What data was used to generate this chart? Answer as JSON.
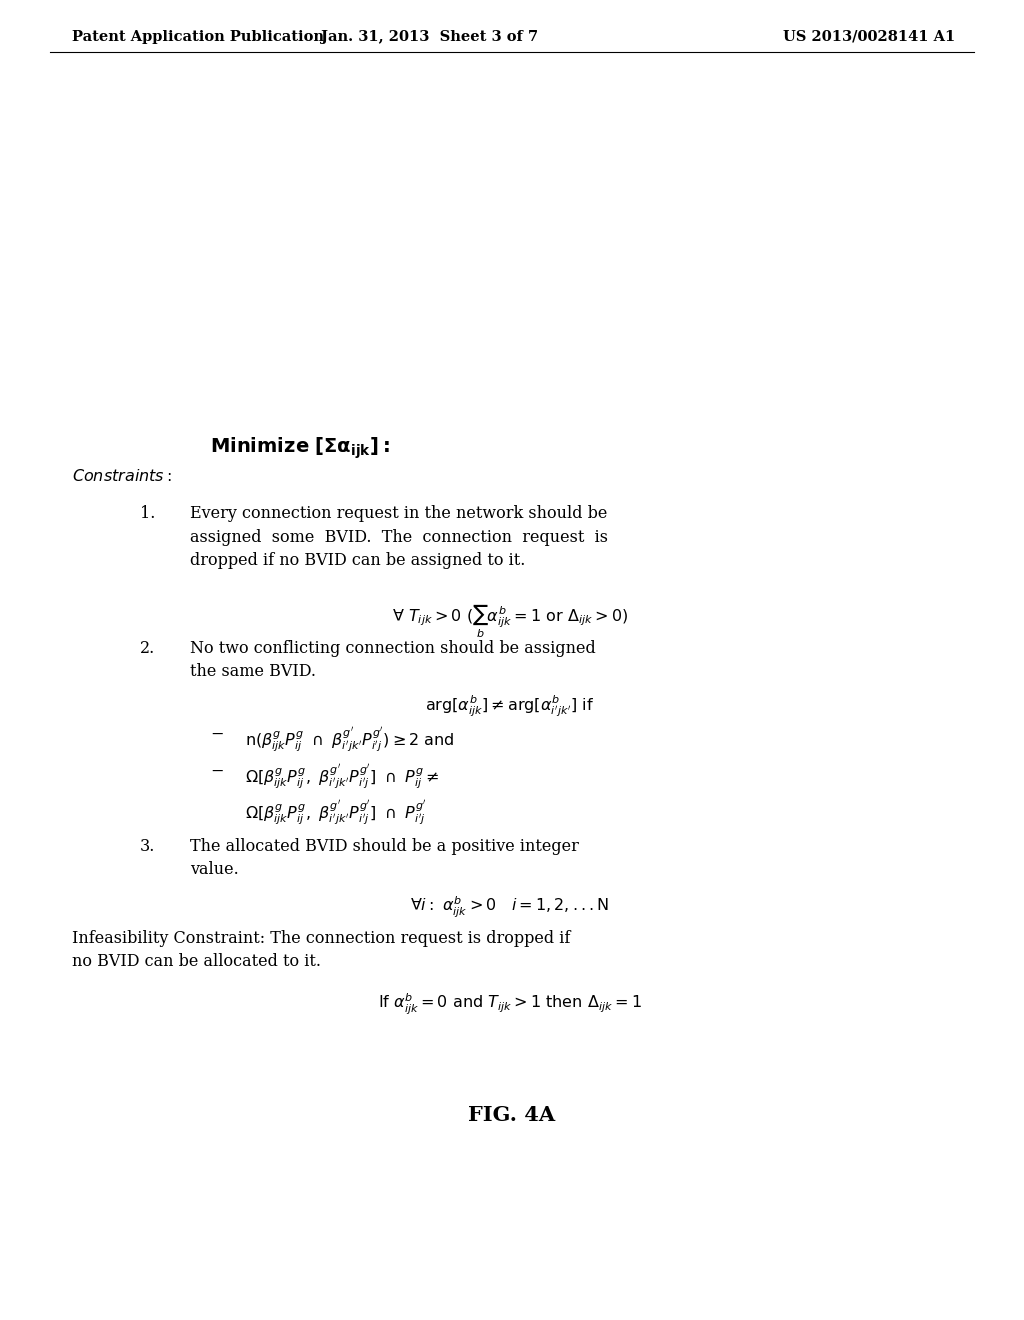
{
  "header_left": "Patent Application Publication",
  "header_mid": "Jan. 31, 2013  Sheet 3 of 7",
  "header_right": "US 2013/0028141 A1",
  "fig_label": "FIG. 4A",
  "background_color": "#ffffff",
  "text_color": "#000000",
  "header_fontsize": 10.5,
  "body_fontsize": 11.5,
  "title_fontsize": 13,
  "fig_label_fontsize": 15
}
